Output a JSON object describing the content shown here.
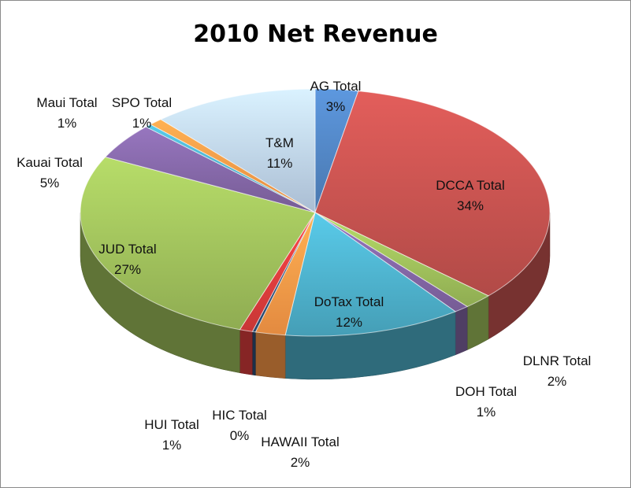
{
  "chart_data": {
    "type": "pie",
    "title": "2010 Net Revenue",
    "slices": [
      {
        "name": "AG Total",
        "value": 3,
        "label": "3%",
        "color": "#4f81bd"
      },
      {
        "name": "DCCA Total",
        "value": 34,
        "label": "34%",
        "color": "#c0504d"
      },
      {
        "name": "DLNR Total",
        "value": 2,
        "label": "2%",
        "color": "#9bbb59"
      },
      {
        "name": "DOH Total",
        "value": 1,
        "label": "1%",
        "color": "#8064a2"
      },
      {
        "name": "DoTax Total",
        "value": 12,
        "label": "12%",
        "color": "#4bacc6"
      },
      {
        "name": "HAWAII Total",
        "value": 2,
        "label": "2%",
        "color": "#f79646"
      },
      {
        "name": "HIC Total",
        "value": 0,
        "label": "0%",
        "color": "#2c4d75"
      },
      {
        "name": "HUI Total",
        "value": 1,
        "label": "1%",
        "color": "#d83b3b"
      },
      {
        "name": "JUD Total",
        "value": 27,
        "label": "27%",
        "color": "#9bbb59"
      },
      {
        "name": "Kauai Total",
        "value": 5,
        "label": "5%",
        "color": "#8064a2"
      },
      {
        "name": "Maui Total",
        "value": 1,
        "label": "1%",
        "color": "#4bacc6"
      },
      {
        "name": "SPO Total",
        "value": 1,
        "label": "1%",
        "color": "#f79646"
      },
      {
        "name": "T&M",
        "value": 11,
        "label": "11%",
        "color": "#b9cde5"
      }
    ],
    "style": "3d-tilted",
    "legend": "none"
  }
}
